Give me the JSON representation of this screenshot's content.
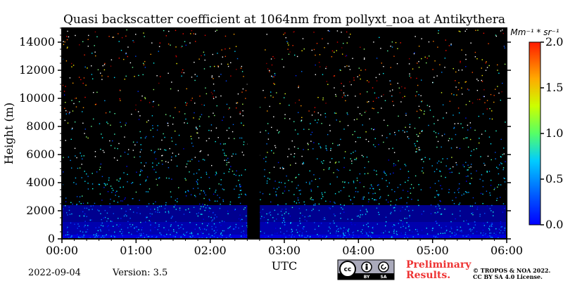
{
  "chart_data": {
    "type": "heatmap",
    "title": "Quasi backscatter coefficient at 1064nm from pollyxt_noa at Antikythera",
    "xlabel": "UTC",
    "ylabel": "Height (m)",
    "x_ticks": [
      "00:00",
      "01:00",
      "02:00",
      "03:00",
      "04:00",
      "05:00",
      "06:00"
    ],
    "x_range_hours": [
      0,
      6
    ],
    "y_ticks": [
      0,
      2000,
      4000,
      6000,
      8000,
      10000,
      12000,
      14000
    ],
    "y_range_m": [
      0,
      15000
    ],
    "colorbar": {
      "label": "Mm⁻¹ * sr⁻¹",
      "ticks": [
        0.0,
        0.5,
        1.0,
        1.5,
        2.0
      ],
      "tick_labels": [
        "0.0",
        "0.5",
        "1.0",
        "1.5",
        "2.0"
      ],
      "range": [
        0,
        2.0
      ],
      "colormap": "jet"
    },
    "background_color": "#000000",
    "data_gap_hours": [
      2.5,
      2.67
    ],
    "layers": [
      {
        "height_m": [
          0,
          300
        ],
        "value": 0.25
      },
      {
        "height_m": [
          300,
          1200
        ],
        "value": 0.15
      },
      {
        "height_m": [
          1200,
          2400
        ],
        "value": 0.08
      }
    ]
  },
  "footer": {
    "date": "2022-09-04",
    "version": "Version: 3.5",
    "preliminary_line1": "Preliminary",
    "preliminary_line2": "Results.",
    "copyright_line1": "© TROPOS & NOA 2022.",
    "copyright_line2": "CC BY SA 4.0 License.",
    "license_badge": {
      "top": "cc",
      "by": "BY",
      "sa": "SA"
    }
  }
}
